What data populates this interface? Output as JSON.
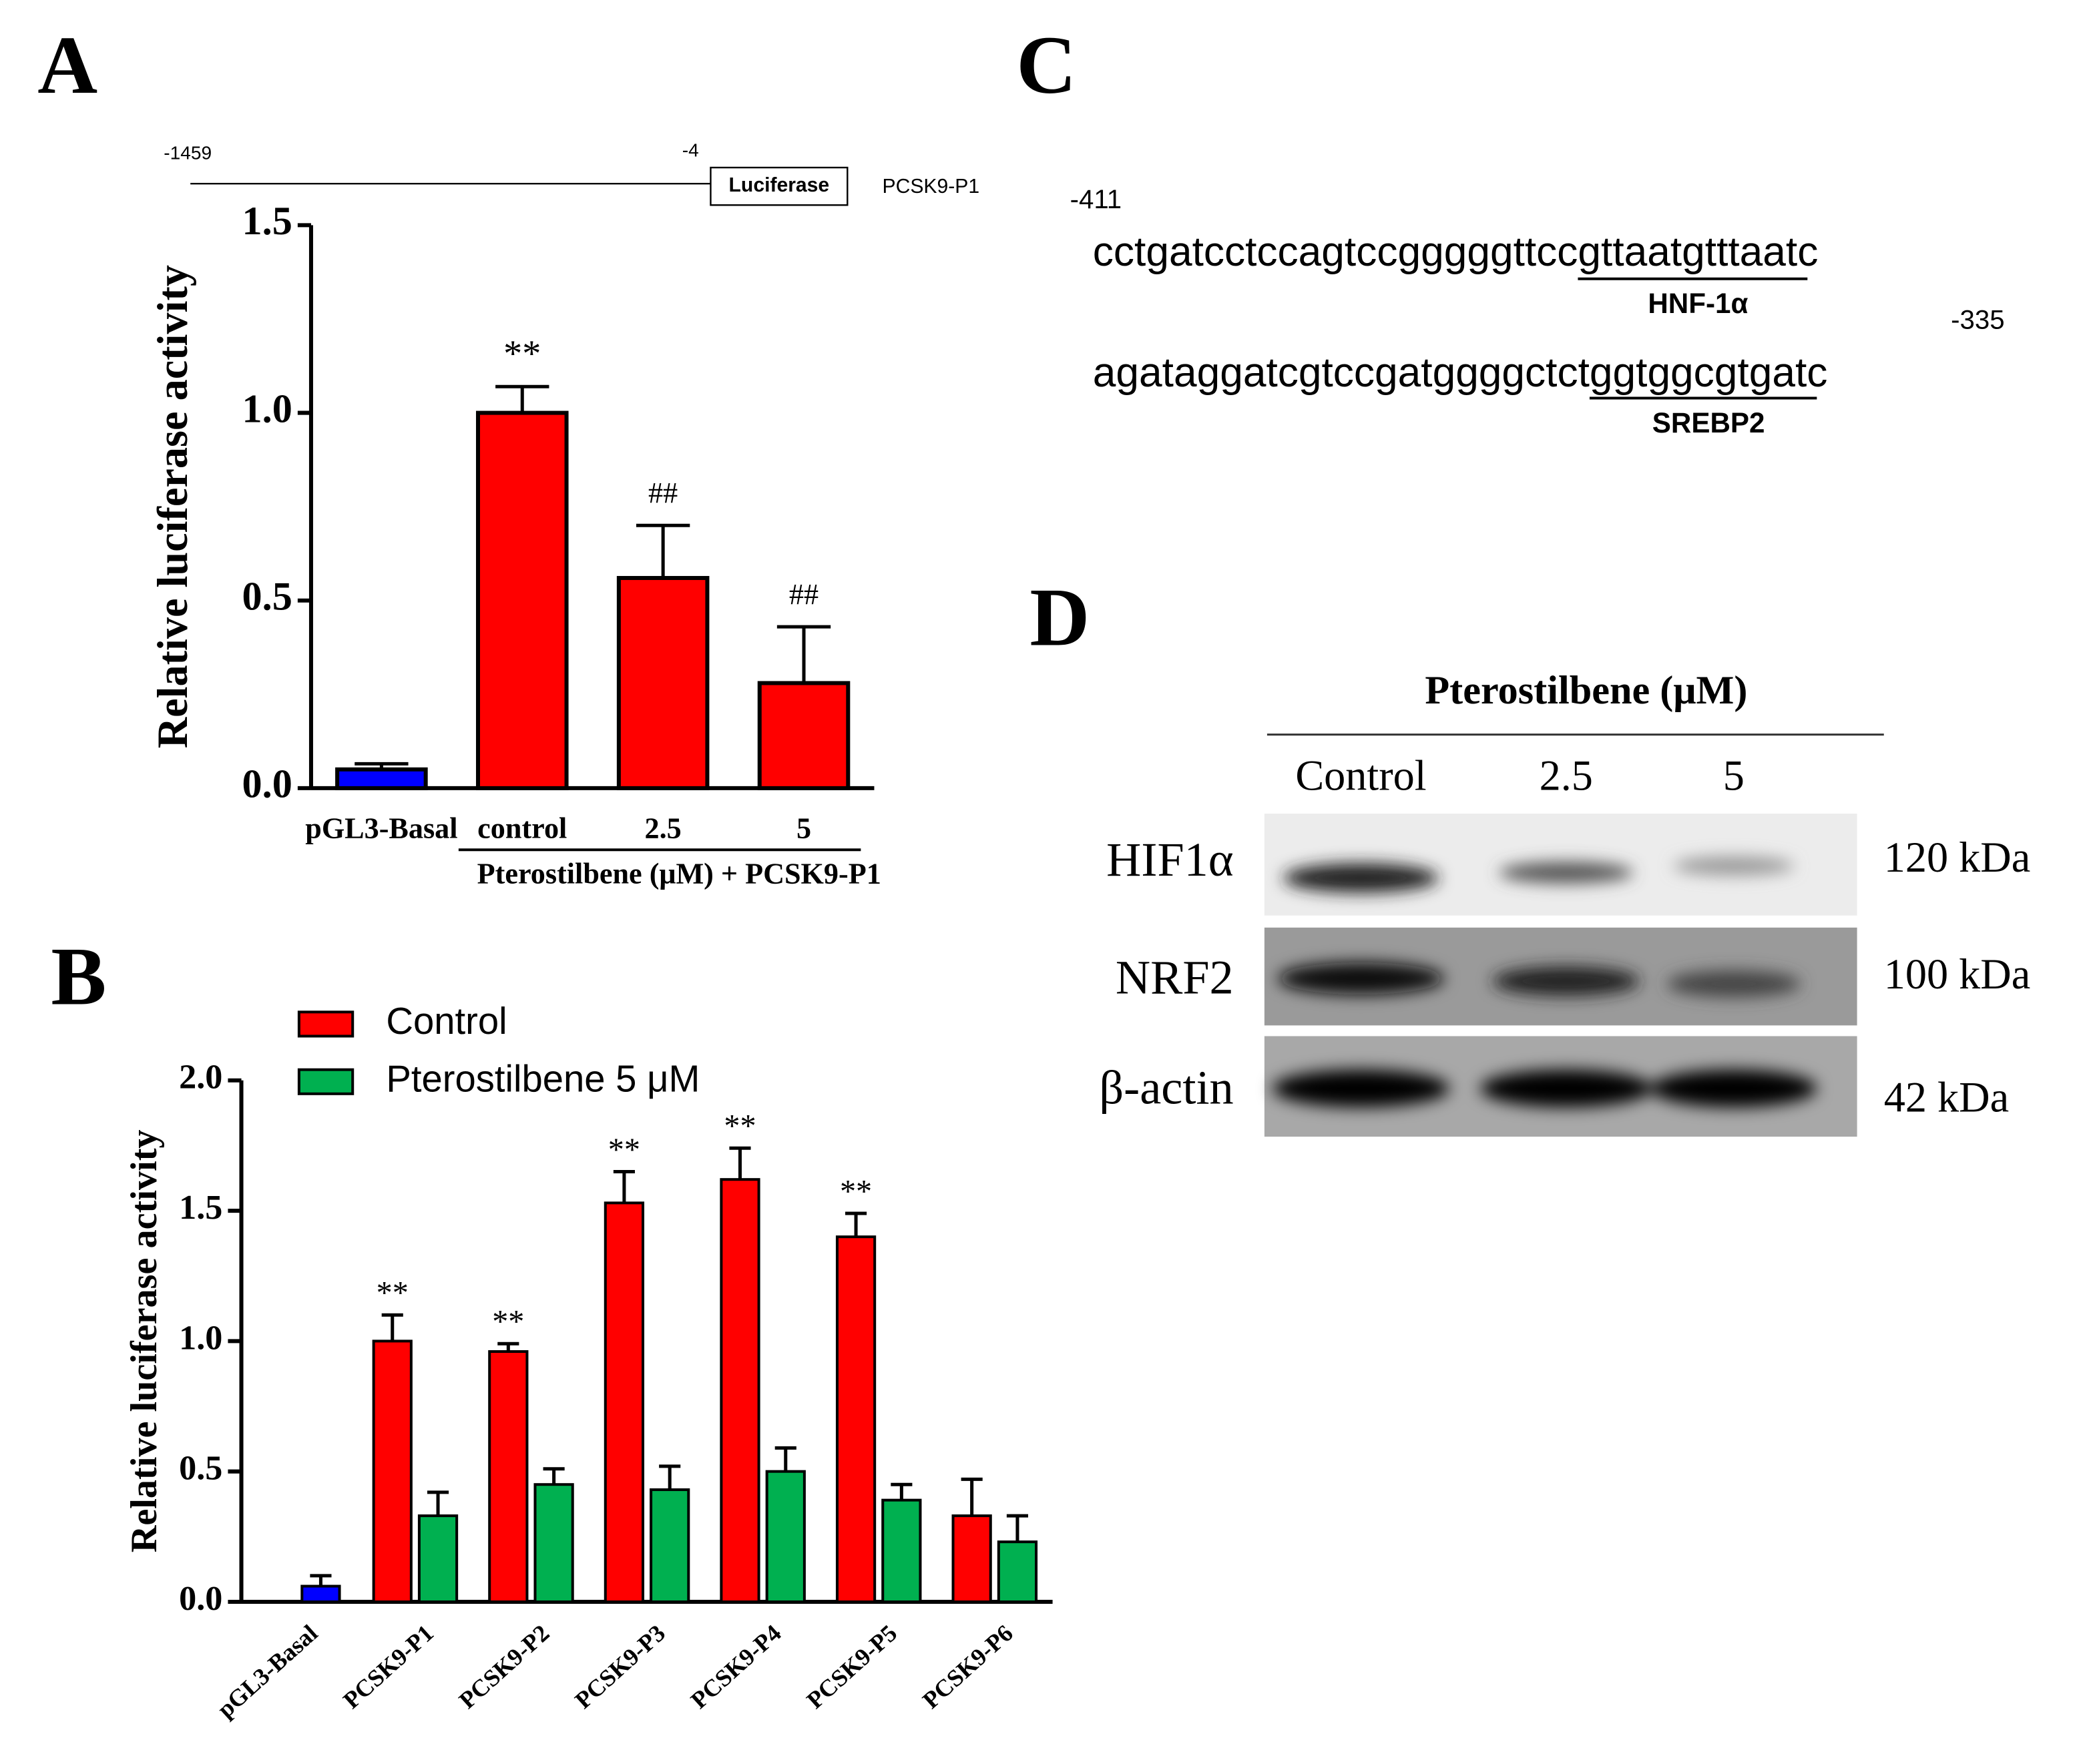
{
  "chart_data": [
    {
      "type": "bar",
      "panel_label": "A",
      "ylabel": "Relative luciferase activity",
      "construct": {
        "start": "-1459",
        "end": "-4",
        "reporter": "Luciferase",
        "name": "PCSK9-P1"
      },
      "categories": [
        "pGL3-Basal",
        "control",
        "2.5",
        "5"
      ],
      "values": [
        0.05,
        1.0,
        0.56,
        0.28
      ],
      "errors": [
        0.015,
        0.07,
        0.14,
        0.15
      ],
      "colors": [
        "#0000ff",
        "#ff0000",
        "#ff0000",
        "#ff0000"
      ],
      "annotations": [
        null,
        "**",
        "##",
        "##"
      ],
      "group_label": "Pterostilbene (μM) + PCSK9-P1",
      "ylim": [
        0,
        1.5
      ],
      "yticks": [
        {
          "value": 0,
          "label": "0.0"
        },
        {
          "value": 0.5,
          "label": "0.5"
        },
        {
          "value": 1,
          "label": "1.0"
        },
        {
          "value": 1.5,
          "label": "1.5"
        }
      ]
    },
    {
      "type": "grouped_bar",
      "panel_label": "B",
      "ylabel": "Relative luciferase activity",
      "categories": [
        "pGL3-Basal",
        "PCSK9-P1",
        "PCSK9-P2",
        "PCSK9-P3",
        "PCSK9-P4",
        "PCSK9-P5",
        "PCSK9-P6"
      ],
      "reference": {
        "color": "#0000ff",
        "value": 0.06,
        "error": 0.04
      },
      "series": [
        {
          "name": "Control",
          "color": "#ff0000",
          "values": [
            null,
            1.0,
            0.96,
            1.53,
            1.62,
            1.4,
            0.33
          ],
          "errors": [
            null,
            0.1,
            0.03,
            0.12,
            0.12,
            0.09,
            0.14
          ],
          "annotations": [
            null,
            "**",
            "**",
            "**",
            "**",
            "**",
            null
          ]
        },
        {
          "name": "Pterostilbene 5 μM",
          "color": "#00b050",
          "values": [
            null,
            0.33,
            0.45,
            0.43,
            0.5,
            0.39,
            0.23
          ],
          "errors": [
            null,
            0.09,
            0.06,
            0.09,
            0.09,
            0.06,
            0.1
          ]
        }
      ],
      "ylim": [
        0,
        2
      ],
      "yticks": [
        {
          "value": 0,
          "label": "0.0"
        },
        {
          "value": 0.5,
          "label": "0.5"
        },
        {
          "value": 1,
          "label": "1.0"
        },
        {
          "value": 1.5,
          "label": "1.5"
        },
        {
          "value": 2,
          "label": "2.0"
        }
      ]
    }
  ],
  "sequence": {
    "panel_label": "C",
    "start": "-411",
    "end": "-335",
    "lines": [
      {
        "plain": "cctgatcctccagtccgggggttcc",
        "site": "gttaatgtttaatc",
        "site_label": "HNF-1α"
      },
      {
        "plain": "agataggatcgtccgatggggctct",
        "site": "ggtggcgtgatc",
        "site_label": "SREBP2"
      }
    ]
  },
  "blot": {
    "panel_label": "D",
    "title": "Pterostilbene (μM)",
    "lanes": [
      "Control",
      "2.5",
      "5"
    ],
    "rows": [
      {
        "label": "HIF1α",
        "size": "120 kDa"
      },
      {
        "label": "NRF2",
        "size": "100 kDa"
      },
      {
        "label": "β-actin",
        "size": "42 kDa"
      }
    ]
  }
}
